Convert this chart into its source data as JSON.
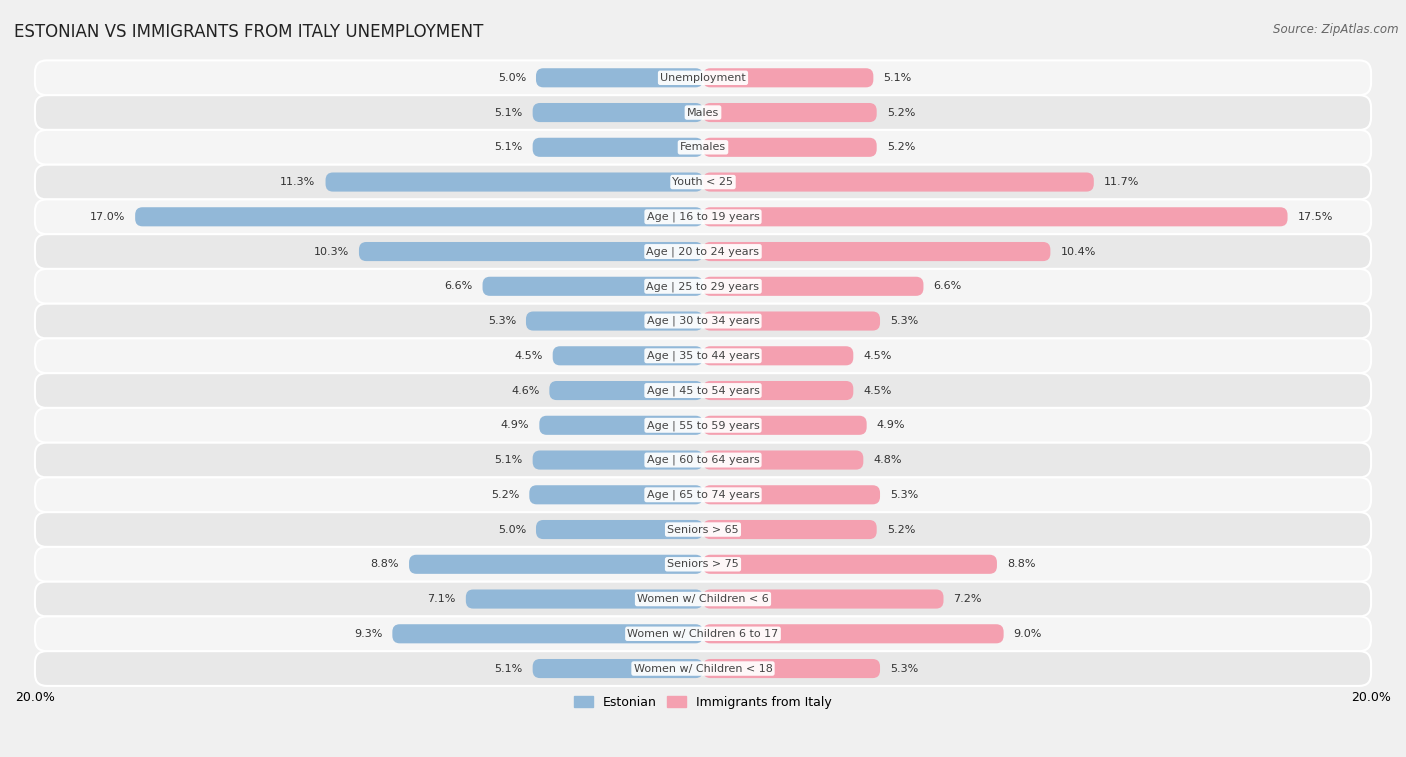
{
  "title": "ESTONIAN VS IMMIGRANTS FROM ITALY UNEMPLOYMENT",
  "source": "Source: ZipAtlas.com",
  "categories": [
    "Unemployment",
    "Males",
    "Females",
    "Youth < 25",
    "Age | 16 to 19 years",
    "Age | 20 to 24 years",
    "Age | 25 to 29 years",
    "Age | 30 to 34 years",
    "Age | 35 to 44 years",
    "Age | 45 to 54 years",
    "Age | 55 to 59 years",
    "Age | 60 to 64 years",
    "Age | 65 to 74 years",
    "Seniors > 65",
    "Seniors > 75",
    "Women w/ Children < 6",
    "Women w/ Children 6 to 17",
    "Women w/ Children < 18"
  ],
  "estonian": [
    5.0,
    5.1,
    5.1,
    11.3,
    17.0,
    10.3,
    6.6,
    5.3,
    4.5,
    4.6,
    4.9,
    5.1,
    5.2,
    5.0,
    8.8,
    7.1,
    9.3,
    5.1
  ],
  "italy": [
    5.1,
    5.2,
    5.2,
    11.7,
    17.5,
    10.4,
    6.6,
    5.3,
    4.5,
    4.5,
    4.9,
    4.8,
    5.3,
    5.2,
    8.8,
    7.2,
    9.0,
    5.3
  ],
  "estonian_color": "#92b8d8",
  "italy_color": "#f4a0b0",
  "bg_color": "#f0f0f0",
  "row_bg_light": "#f5f5f5",
  "row_bg_dark": "#e8e8e8",
  "axis_max": 20.0,
  "bar_height": 0.55,
  "legend_estonian": "Estonian",
  "legend_italy": "Immigrants from Italy",
  "title_fontsize": 12,
  "source_fontsize": 8.5,
  "label_fontsize": 8,
  "category_fontsize": 8
}
